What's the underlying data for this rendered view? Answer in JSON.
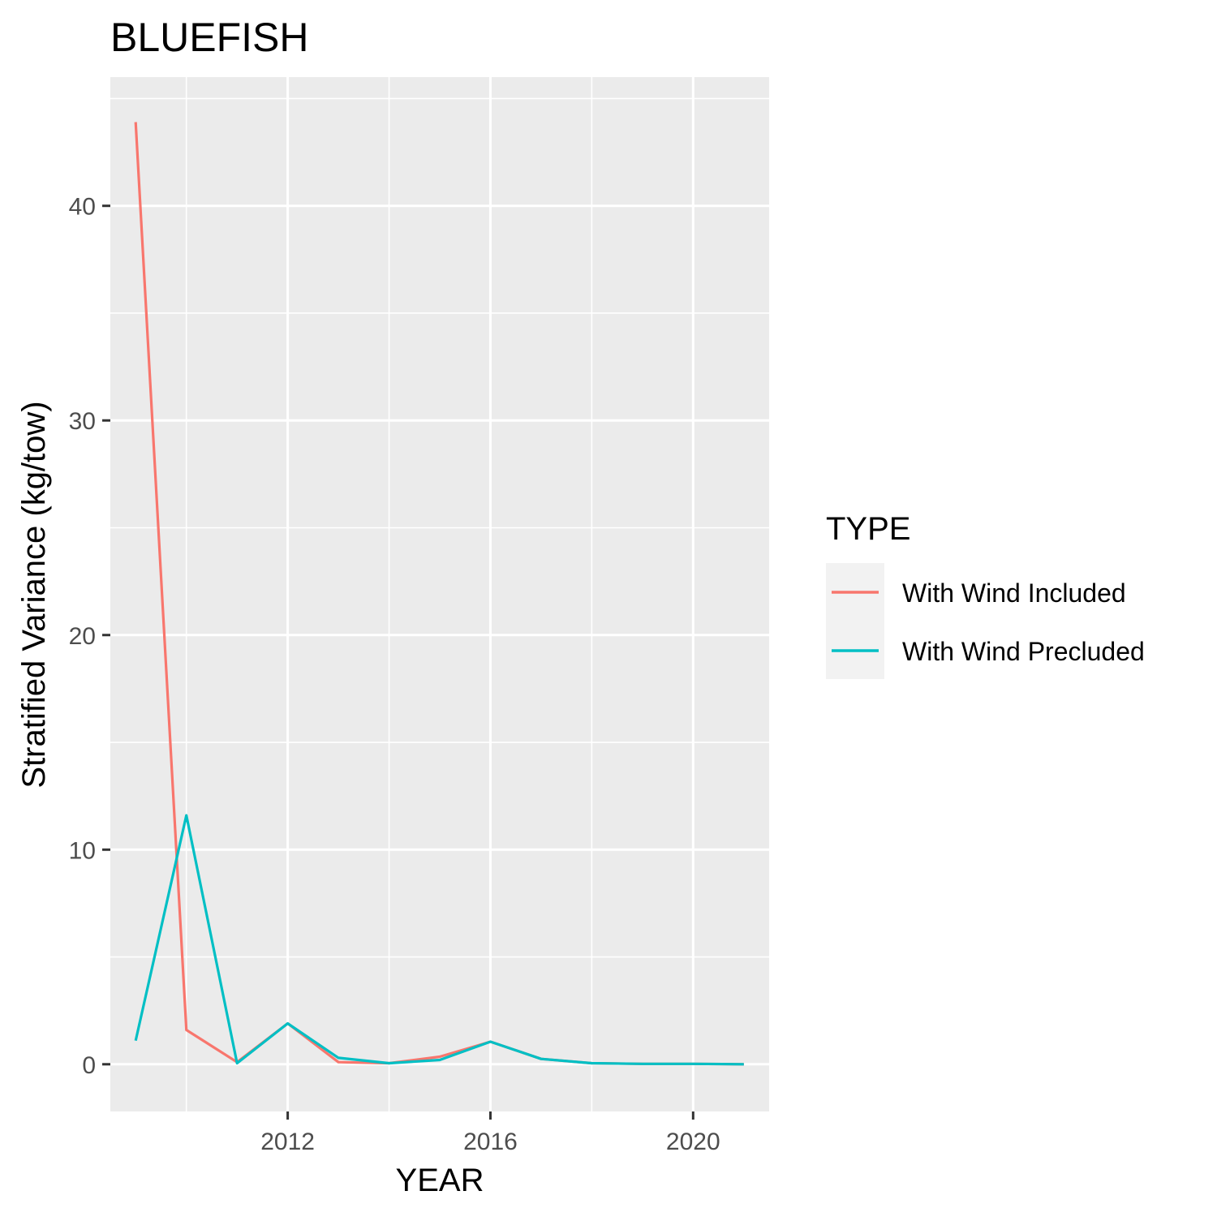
{
  "chart_data": {
    "type": "line",
    "title": "BLUEFISH",
    "xlabel": "YEAR",
    "ylabel": "Stratified Variance (kg/tow)",
    "xlim": [
      2008.5,
      2021.5
    ],
    "ylim": [
      -2.2,
      46.0
    ],
    "x_ticks": [
      2012,
      2016,
      2020
    ],
    "y_ticks": [
      0,
      10,
      20,
      30,
      40
    ],
    "grid": true,
    "legend": {
      "title": "TYPE",
      "position": "right"
    },
    "series": [
      {
        "name": "With Wind Included",
        "color": "#F8766D",
        "x": [
          2009,
          2010,
          2011,
          2012,
          2013,
          2014,
          2015,
          2016,
          2017,
          2018,
          2019,
          2020,
          2021
        ],
        "y": [
          43.9,
          1.6,
          0.1,
          1.9,
          0.1,
          0.05,
          0.35,
          1.05,
          0.25,
          0.05,
          0.02,
          0.02,
          0.0
        ]
      },
      {
        "name": "With Wind Precluded",
        "color": "#00BFC4",
        "x": [
          2009,
          2010,
          2011,
          2012,
          2013,
          2014,
          2015,
          2016,
          2017,
          2018,
          2019,
          2020,
          2021
        ],
        "y": [
          1.1,
          11.6,
          0.05,
          1.9,
          0.3,
          0.05,
          0.2,
          1.05,
          0.25,
          0.05,
          0.02,
          0.02,
          0.0
        ]
      }
    ]
  }
}
